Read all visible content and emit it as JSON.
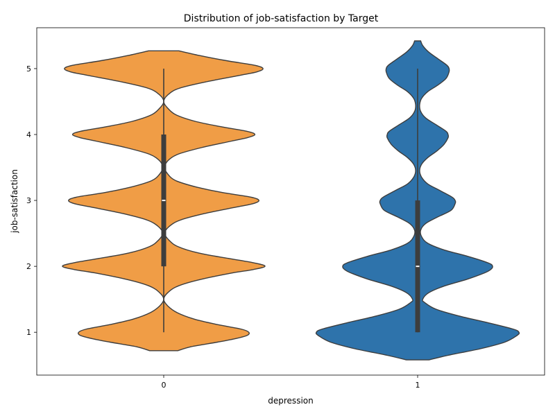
{
  "chart_data": {
    "type": "violin",
    "title": "Distribution of job-satisfaction by Target",
    "xlabel": "depression",
    "ylabel": "job-satisfaction",
    "categories": [
      "0",
      "1"
    ],
    "ylim": [
      0.35,
      5.62
    ],
    "yticks": [
      1,
      2,
      3,
      4,
      5
    ],
    "grid": false,
    "series": [
      {
        "category": "0",
        "color": "#f09d46",
        "density": [
          [
            0.72,
            0.14
          ],
          [
            0.78,
            0.27
          ],
          [
            0.85,
            0.53
          ],
          [
            0.9,
            0.7
          ],
          [
            0.95,
            0.82
          ],
          [
            1.0,
            0.84
          ],
          [
            1.05,
            0.76
          ],
          [
            1.12,
            0.52
          ],
          [
            1.2,
            0.3
          ],
          [
            1.3,
            0.13
          ],
          [
            1.4,
            0.04
          ],
          [
            1.5,
            0.0
          ],
          [
            1.6,
            0.04
          ],
          [
            1.7,
            0.14
          ],
          [
            1.8,
            0.36
          ],
          [
            1.9,
            0.68
          ],
          [
            1.95,
            0.88
          ],
          [
            2.0,
            1.0
          ],
          [
            2.05,
            0.9
          ],
          [
            2.12,
            0.64
          ],
          [
            2.2,
            0.35
          ],
          [
            2.3,
            0.14
          ],
          [
            2.4,
            0.05
          ],
          [
            2.5,
            0.01
          ],
          [
            2.6,
            0.05
          ],
          [
            2.7,
            0.16
          ],
          [
            2.8,
            0.4
          ],
          [
            2.9,
            0.72
          ],
          [
            2.95,
            0.88
          ],
          [
            3.0,
            0.94
          ],
          [
            3.05,
            0.86
          ],
          [
            3.12,
            0.58
          ],
          [
            3.2,
            0.33
          ],
          [
            3.3,
            0.12
          ],
          [
            3.4,
            0.04
          ],
          [
            3.5,
            0.01
          ],
          [
            3.6,
            0.04
          ],
          [
            3.7,
            0.14
          ],
          [
            3.8,
            0.37
          ],
          [
            3.9,
            0.67
          ],
          [
            3.95,
            0.82
          ],
          [
            4.0,
            0.9
          ],
          [
            4.05,
            0.82
          ],
          [
            4.12,
            0.56
          ],
          [
            4.2,
            0.31
          ],
          [
            4.3,
            0.12
          ],
          [
            4.4,
            0.04
          ],
          [
            4.5,
            0.0
          ],
          [
            4.6,
            0.04
          ],
          [
            4.7,
            0.15
          ],
          [
            4.8,
            0.42
          ],
          [
            4.9,
            0.76
          ],
          [
            4.95,
            0.92
          ],
          [
            5.0,
            0.98
          ],
          [
            5.05,
            0.9
          ],
          [
            5.12,
            0.62
          ],
          [
            5.2,
            0.35
          ],
          [
            5.27,
            0.15
          ]
        ],
        "box": {
          "q1": 2,
          "median": 3,
          "q3": 4,
          "whisker_low": 1,
          "whisker_high": 5
        }
      },
      {
        "category": "1",
        "color": "#2e73ab",
        "density": [
          [
            0.58,
            0.11
          ],
          [
            0.65,
            0.3
          ],
          [
            0.75,
            0.62
          ],
          [
            0.85,
            0.86
          ],
          [
            0.95,
            0.98
          ],
          [
            1.0,
            1.0
          ],
          [
            1.05,
            0.94
          ],
          [
            1.15,
            0.68
          ],
          [
            1.25,
            0.4
          ],
          [
            1.35,
            0.18
          ],
          [
            1.45,
            0.07
          ],
          [
            1.5,
            0.05
          ],
          [
            1.6,
            0.11
          ],
          [
            1.7,
            0.26
          ],
          [
            1.8,
            0.48
          ],
          [
            1.9,
            0.66
          ],
          [
            1.95,
            0.72
          ],
          [
            2.0,
            0.74
          ],
          [
            2.05,
            0.7
          ],
          [
            2.15,
            0.5
          ],
          [
            2.25,
            0.26
          ],
          [
            2.35,
            0.1
          ],
          [
            2.45,
            0.04
          ],
          [
            2.55,
            0.03
          ],
          [
            2.65,
            0.08
          ],
          [
            2.75,
            0.2
          ],
          [
            2.85,
            0.33
          ],
          [
            2.95,
            0.37
          ],
          [
            3.0,
            0.37
          ],
          [
            3.05,
            0.34
          ],
          [
            3.15,
            0.22
          ],
          [
            3.25,
            0.1
          ],
          [
            3.35,
            0.04
          ],
          [
            3.45,
            0.02
          ],
          [
            3.55,
            0.04
          ],
          [
            3.65,
            0.1
          ],
          [
            3.75,
            0.19
          ],
          [
            3.85,
            0.26
          ],
          [
            3.95,
            0.3
          ],
          [
            4.0,
            0.3
          ],
          [
            4.05,
            0.28
          ],
          [
            4.15,
            0.18
          ],
          [
            4.25,
            0.08
          ],
          [
            4.35,
            0.03
          ],
          [
            4.45,
            0.02
          ],
          [
            4.55,
            0.04
          ],
          [
            4.65,
            0.1
          ],
          [
            4.75,
            0.2
          ],
          [
            4.85,
            0.28
          ],
          [
            4.95,
            0.31
          ],
          [
            5.0,
            0.31
          ],
          [
            5.05,
            0.29
          ],
          [
            5.15,
            0.2
          ],
          [
            5.25,
            0.11
          ],
          [
            5.35,
            0.05
          ],
          [
            5.42,
            0.03
          ]
        ],
        "box": {
          "q1": 1,
          "median": 2,
          "q3": 3,
          "whisker_low": 1,
          "whisker_high": 5
        }
      }
    ]
  }
}
